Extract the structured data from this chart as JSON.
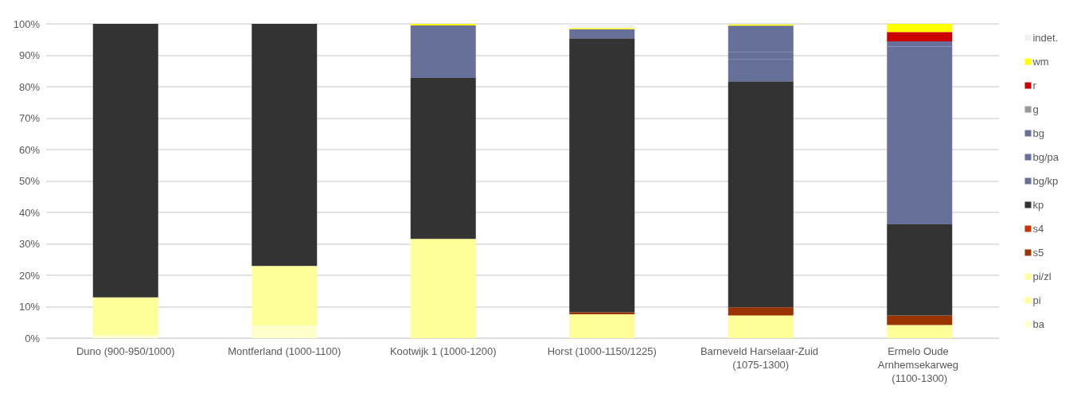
{
  "chart_data": {
    "type": "bar",
    "stacked": true,
    "categories": [
      "Duno (900-950/1000)",
      "Montferland (1000-1100)",
      "Kootwijk 1 (1000-1200)",
      "Horst (1000-1150/1225)",
      "Barneveld Harselaar-Zuid (1075-1300)",
      "Ermelo Oude Arnhemsekarweg (1100-1300)"
    ],
    "series": [
      {
        "name": "ba",
        "color": "#ffffcc",
        "values": [
          1,
          4,
          null,
          null,
          null,
          null
        ]
      },
      {
        "name": "pi",
        "color": "#ffff99",
        "values": [
          12,
          19,
          31.6,
          7.6,
          7.2,
          4.2
        ]
      },
      {
        "name": "pi/zl",
        "color": "#ffff99",
        "values": [
          null,
          null,
          null,
          null,
          null,
          null
        ]
      },
      {
        "name": "s5",
        "color": "#993300",
        "values": [
          null,
          null,
          null,
          0.6,
          2.6,
          3.0
        ]
      },
      {
        "name": "s4",
        "color": "#cc3300",
        "values": [
          null,
          null,
          null,
          null,
          null,
          null
        ]
      },
      {
        "name": "kp",
        "color": "#333333",
        "values": [
          87,
          77,
          51.2,
          87.2,
          71.9,
          29.0
        ]
      },
      {
        "name": "bg/kp",
        "color": "#667099",
        "values": [
          null,
          null,
          null,
          null,
          7.0,
          56.6
        ]
      },
      {
        "name": "bg/pa",
        "color": "#667099",
        "values": [
          null,
          null,
          null,
          null,
          2.4,
          1.6
        ]
      },
      {
        "name": "bg",
        "color": "#667099",
        "values": [
          null,
          null,
          16.7,
          2.9,
          8.3,
          null
        ]
      },
      {
        "name": "g",
        "color": "#999999",
        "values": [
          null,
          null,
          null,
          null,
          null,
          null
        ]
      },
      {
        "name": "r",
        "color": "#cc0000",
        "values": [
          null,
          null,
          null,
          null,
          null,
          3.0
        ]
      },
      {
        "name": "wm",
        "color": "#ffff00",
        "values": [
          null,
          null,
          0.5,
          0.4,
          0.4,
          2.6
        ]
      },
      {
        "name": "indet.",
        "color": "#f2f2f2",
        "values": [
          null,
          null,
          null,
          1.3,
          null,
          null
        ]
      }
    ],
    "ylim": [
      0,
      100
    ],
    "yticks": [
      {
        "value": 0,
        "label": "0%"
      },
      {
        "value": 10,
        "label": "10%"
      },
      {
        "value": 20,
        "label": "20%"
      },
      {
        "value": 30,
        "label": "30%"
      },
      {
        "value": 40,
        "label": "40%"
      },
      {
        "value": 50,
        "label": "50%"
      },
      {
        "value": 60,
        "label": "60%"
      },
      {
        "value": 70,
        "label": "70%"
      },
      {
        "value": 80,
        "label": "80%"
      },
      {
        "value": 90,
        "label": "90%"
      },
      {
        "value": 100,
        "label": "100%"
      }
    ],
    "grid": "y",
    "legend": "right"
  }
}
